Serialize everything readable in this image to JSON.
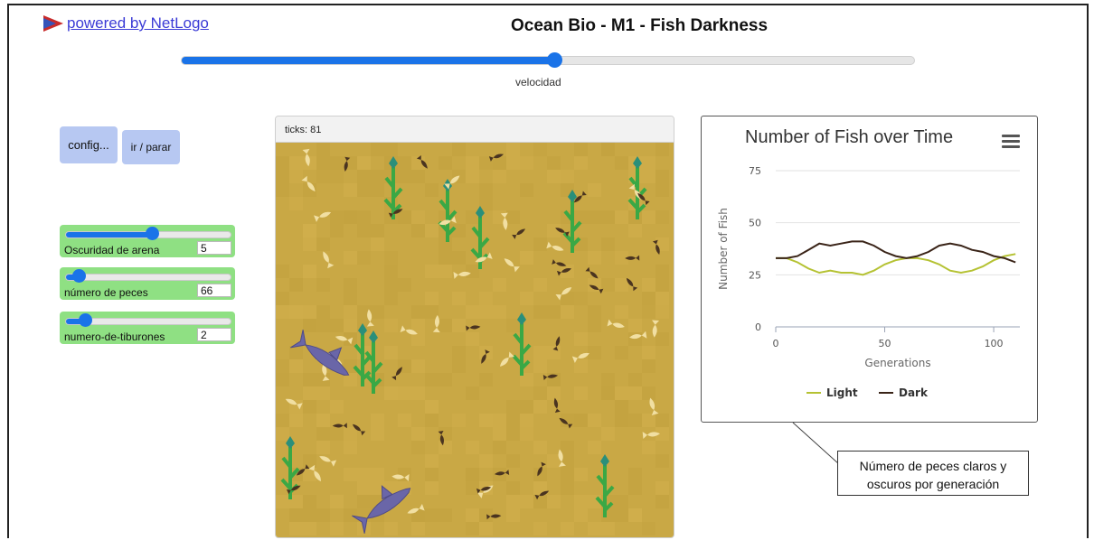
{
  "header": {
    "netlogo_link": "powered by NetLogo",
    "logo_icon": "netlogo-arrow-icon",
    "title": "Ocean Bio - M1 - Fish Darkness"
  },
  "speed": {
    "label": "velocidad",
    "value_fraction": 0.51
  },
  "buttons": {
    "setup": "config...",
    "go": "ir / parar"
  },
  "sliders": [
    {
      "label": "Oscuridad de arena",
      "value": "5",
      "fraction": 0.53
    },
    {
      "label": "número de peces",
      "value": "66",
      "fraction": 0.08
    },
    {
      "label": "numero-de-tiburones",
      "value": "2",
      "fraction": 0.12
    }
  ],
  "world": {
    "ticks_label": "ticks: 81",
    "sand_color": "#c9a845"
  },
  "plot": {
    "title": "Number of Fish over Time",
    "menu_icon": "hamburger-menu-icon"
  },
  "chart_data": {
    "type": "line",
    "title": "Number of Fish over Time",
    "xlabel": "Generations",
    "ylabel": "Number of Fish",
    "xlim": [
      0,
      112
    ],
    "ylim": [
      0,
      75
    ],
    "xticks": [
      0,
      50,
      100
    ],
    "yticks": [
      0,
      25,
      50,
      75
    ],
    "grid": true,
    "legend": "bottom",
    "series": [
      {
        "name": "Light",
        "color": "#b5c233",
        "x": [
          0,
          5,
          10,
          15,
          20,
          25,
          30,
          35,
          40,
          45,
          50,
          55,
          60,
          65,
          70,
          75,
          80,
          85,
          90,
          95,
          100,
          105,
          110
        ],
        "y": [
          33,
          33,
          31,
          28,
          26,
          27,
          26,
          26,
          25,
          27,
          30,
          32,
          33,
          33,
          32,
          30,
          27,
          26,
          27,
          29,
          32,
          34,
          35
        ]
      },
      {
        "name": "Dark",
        "color": "#3a2418",
        "x": [
          0,
          5,
          10,
          15,
          20,
          25,
          30,
          35,
          40,
          45,
          50,
          55,
          60,
          65,
          70,
          75,
          80,
          85,
          90,
          95,
          100,
          105,
          110
        ],
        "y": [
          33,
          33,
          34,
          37,
          40,
          39,
          40,
          41,
          41,
          39,
          36,
          34,
          33,
          34,
          36,
          39,
          40,
          39,
          37,
          36,
          34,
          33,
          31
        ]
      }
    ]
  },
  "annotation": {
    "line1": "Número de peces claros y",
    "line2": "oscuros por generación"
  }
}
